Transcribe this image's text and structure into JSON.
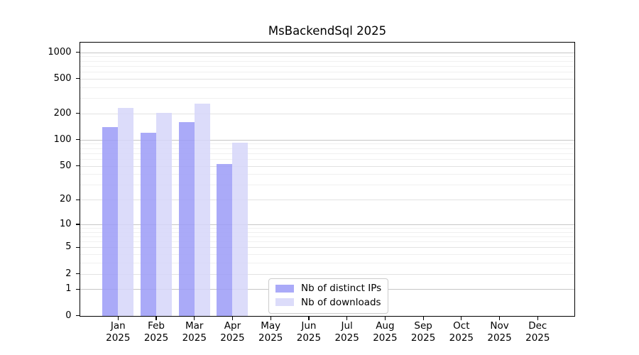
{
  "chart_data": {
    "type": "bar",
    "title": "MsBackendSql 2025",
    "categories": [
      "Jan",
      "Feb",
      "Mar",
      "Apr",
      "May",
      "Jun",
      "Jul",
      "Aug",
      "Sep",
      "Oct",
      "Nov",
      "Dec"
    ],
    "year": "2025",
    "series": [
      {
        "name": "Nb of distinct IPs",
        "color": "#aaaaf8",
        "values": [
          139,
          121,
          160,
          52,
          0,
          0,
          0,
          0,
          0,
          0,
          0,
          0
        ]
      },
      {
        "name": "Nb of downloads",
        "color": "#dcdcfa",
        "values": [
          233,
          205,
          260,
          92,
          0,
          0,
          0,
          0,
          0,
          0,
          0,
          0
        ]
      }
    ],
    "yscale": "log1p",
    "yticks": [
      0,
      1,
      2,
      5,
      10,
      20,
      50,
      100,
      200,
      500,
      1000
    ],
    "ylim": [
      0,
      1290
    ],
    "xlabel": "",
    "ylabel": "",
    "grid": "both",
    "legend_position": "lower-center",
    "style": {
      "grid_major_color": "#c6c6c6",
      "grid_mid_color": "#e2e2e2",
      "grid_minor_color": "#f0f0f0",
      "spine_color": "#000000",
      "background": "#ffffff",
      "grid_mid_values": [
        2,
        5,
        20,
        50,
        200,
        500
      ],
      "grid_minor_values": [
        3,
        4,
        6,
        7,
        8,
        9,
        30,
        40,
        60,
        70,
        80,
        90,
        300,
        400,
        600,
        700,
        800,
        900
      ]
    }
  }
}
